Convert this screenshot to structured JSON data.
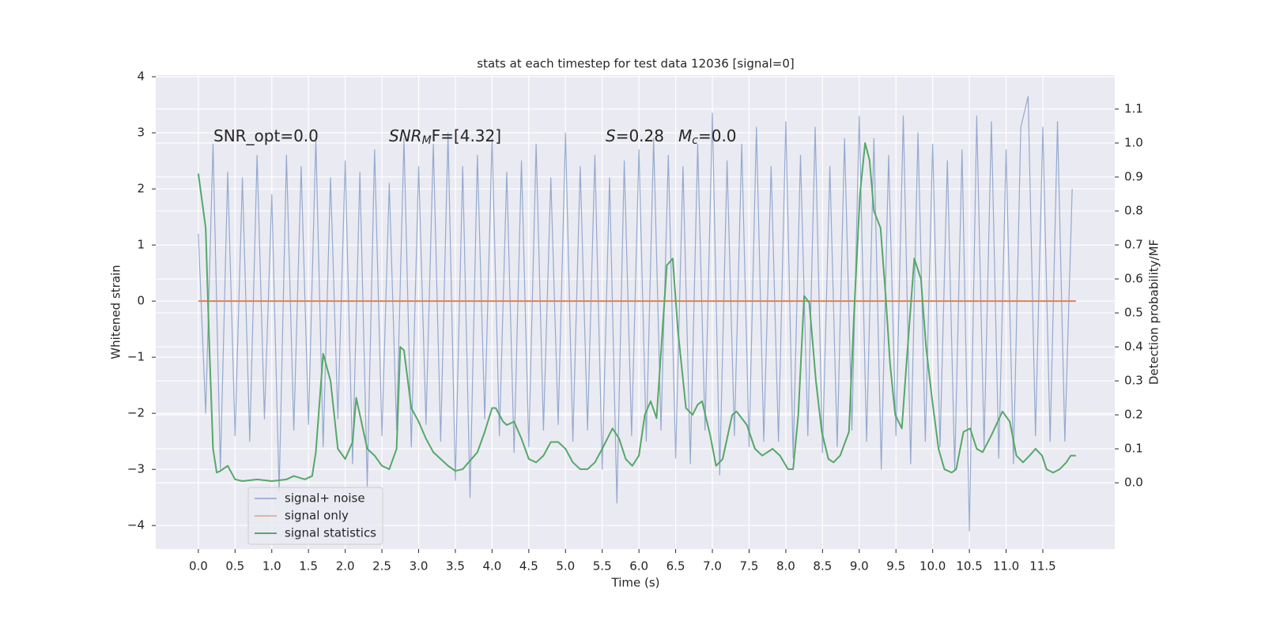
{
  "chart_data": {
    "type": "line",
    "title": "stats at each timestep for test data 12036 [signal=0]",
    "xlabel": "Time (s)",
    "ylabel": "Whitened strain",
    "y2label": "Detection probability/MF",
    "xlim": [
      -0.58,
      12.48
    ],
    "ylim": [
      -4.42,
      4.03
    ],
    "y2lim": [
      -0.195,
      1.2
    ],
    "xticks": [
      {
        "value": 0,
        "label": "0.0"
      },
      0.5,
      {
        "value": 1,
        "label": "1.0"
      },
      1.5,
      {
        "value": 2,
        "label": "2.0"
      },
      2.5,
      {
        "value": 3,
        "label": "3.0"
      },
      3.5,
      {
        "value": 4,
        "label": "4.0"
      },
      4.5,
      {
        "value": 5,
        "label": "5.0"
      },
      5.5,
      {
        "value": 6,
        "label": "6.0"
      },
      6.5,
      {
        "value": 7,
        "label": "7.0"
      },
      7.5,
      {
        "value": 8,
        "label": "8.0"
      },
      8.5,
      {
        "value": 9,
        "label": "9.0"
      },
      9.5,
      {
        "value": 10,
        "label": "10.0"
      },
      10.5,
      {
        "value": 11,
        "label": "11.0"
      },
      11.5
    ],
    "yticks": [
      {
        "value": -4,
        "label": "−4"
      },
      {
        "value": -3,
        "label": "−3"
      },
      {
        "value": -2,
        "label": "−2"
      },
      {
        "value": -1,
        "label": "−1"
      },
      0,
      1,
      2,
      3,
      4
    ],
    "y2ticks": [
      {
        "value": 0,
        "label": "0.0"
      },
      0.1,
      0.2,
      0.3,
      0.4,
      0.5,
      0.6,
      0.7,
      0.8,
      0.9,
      {
        "value": 1,
        "label": "1.0"
      },
      1.1
    ],
    "grid": true,
    "legend": "lower left",
    "annotations": [
      {
        "text": "SNR_opt=0.0"
      },
      {
        "base": "SNR",
        "sub": "M",
        "tail": "F=[4.32]"
      },
      {
        "base": "S",
        "tail": "=0.28"
      },
      {
        "base": "M",
        "sub": "c",
        "tail": "=0.0"
      }
    ],
    "series": [
      {
        "name": "signal+ noise",
        "color": "#4c72b0",
        "x": [
          0.0,
          0.1,
          0.2,
          0.3,
          0.4,
          0.5,
          0.6,
          0.7,
          0.8,
          0.9,
          1.0,
          1.1,
          1.2,
          1.3,
          1.4,
          1.5,
          1.6,
          1.7,
          1.8,
          1.9,
          2.0,
          2.1,
          2.2,
          2.3,
          2.4,
          2.5,
          2.6,
          2.7,
          2.8,
          2.9,
          3.0,
          3.1,
          3.2,
          3.3,
          3.4,
          3.5,
          3.6,
          3.7,
          3.8,
          3.9,
          4.0,
          4.1,
          4.2,
          4.3,
          4.4,
          4.5,
          4.6,
          4.7,
          4.8,
          4.9,
          5.0,
          5.1,
          5.2,
          5.3,
          5.4,
          5.5,
          5.6,
          5.7,
          5.8,
          5.9,
          6.0,
          6.1,
          6.2,
          6.3,
          6.4,
          6.5,
          6.6,
          6.7,
          6.8,
          6.9,
          7.0,
          7.1,
          7.2,
          7.3,
          7.4,
          7.5,
          7.6,
          7.7,
          7.8,
          7.9,
          8.0,
          8.1,
          8.2,
          8.3,
          8.4,
          8.5,
          8.6,
          8.7,
          8.8,
          8.9,
          9.0,
          9.1,
          9.2,
          9.3,
          9.4,
          9.5,
          9.6,
          9.7,
          9.8,
          9.9,
          10.0,
          10.1,
          10.2,
          10.3,
          10.4,
          10.5,
          10.6,
          10.7,
          10.8,
          10.9,
          11.0,
          11.1,
          11.2,
          11.3,
          11.4,
          11.5,
          11.6,
          11.7,
          11.8,
          11.9
        ],
        "values": [
          1.2,
          -2.0,
          2.8,
          -3.0,
          2.3,
          -2.4,
          2.2,
          -2.5,
          2.6,
          -2.1,
          1.9,
          -3.4,
          2.6,
          -2.3,
          2.4,
          -2.2,
          2.9,
          -2.6,
          2.2,
          -2.1,
          2.5,
          -2.9,
          2.3,
          -3.3,
          2.7,
          -2.4,
          2.1,
          -2.3,
          2.9,
          -2.6,
          2.4,
          -2.2,
          2.8,
          -2.5,
          3.0,
          -3.2,
          2.4,
          -3.5,
          2.6,
          -2.1,
          2.9,
          -2.4,
          2.3,
          -2.7,
          2.5,
          -2.6,
          2.8,
          -2.3,
          2.2,
          -2.2,
          3.0,
          -2.5,
          2.4,
          -2.3,
          2.6,
          -3.0,
          2.2,
          -3.6,
          2.5,
          -2.4,
          2.7,
          -2.5,
          2.9,
          -2.3,
          2.6,
          -2.8,
          2.4,
          -2.9,
          2.8,
          -2.3,
          3.35,
          -3.1,
          2.5,
          -2.4,
          2.8,
          -2.6,
          3.1,
          -2.5,
          2.4,
          -2.5,
          3.2,
          -2.8,
          2.6,
          -2.4,
          3.1,
          -2.7,
          2.4,
          -2.6,
          2.9,
          -2.3,
          3.3,
          -2.5,
          2.9,
          -3.0,
          2.6,
          -2.4,
          3.3,
          -2.9,
          3.0,
          -2.5,
          2.8,
          -2.6,
          2.5,
          -3.0,
          2.7,
          -4.1,
          3.3,
          -2.6,
          3.2,
          -2.8,
          2.7,
          -2.9,
          3.1,
          3.65,
          -2.4,
          3.1,
          -2.5,
          3.2,
          -2.5,
          2.0
        ]
      },
      {
        "name": "signal only",
        "color": "#dd8452",
        "x": [
          0.0,
          11.95
        ],
        "values": [
          0,
          0
        ]
      },
      {
        "name": "signal statistics",
        "color": "#55a868",
        "axis": "y2",
        "x": [
          0.0,
          0.1,
          0.15,
          0.2,
          0.25,
          0.3,
          0.4,
          0.5,
          0.6,
          0.8,
          1.0,
          1.2,
          1.3,
          1.45,
          1.55,
          1.6,
          1.7,
          1.8,
          1.9,
          2.0,
          2.1,
          2.15,
          2.2,
          2.3,
          2.4,
          2.5,
          2.6,
          2.7,
          2.75,
          2.8,
          2.9,
          3.0,
          3.1,
          3.2,
          3.4,
          3.5,
          3.6,
          3.8,
          3.9,
          4.0,
          4.05,
          4.15,
          4.2,
          4.3,
          4.4,
          4.5,
          4.6,
          4.7,
          4.8,
          4.9,
          5.0,
          5.1,
          5.2,
          5.3,
          5.4,
          5.5,
          5.64,
          5.73,
          5.82,
          5.91,
          6.0,
          6.08,
          6.16,
          6.24,
          6.38,
          6.46,
          6.53,
          6.64,
          6.73,
          6.8,
          6.86,
          6.97,
          7.05,
          7.14,
          7.27,
          7.33,
          7.47,
          7.58,
          7.68,
          7.82,
          7.92,
          8.03,
          8.1,
          8.17,
          8.25,
          8.32,
          8.41,
          8.49,
          8.58,
          8.65,
          8.74,
          8.86,
          8.93,
          9.01,
          9.08,
          9.14,
          9.2,
          9.29,
          9.36,
          9.42,
          9.49,
          9.58,
          9.66,
          9.75,
          9.84,
          9.91,
          9.99,
          10.08,
          10.16,
          10.26,
          10.32,
          10.42,
          10.51,
          10.6,
          10.68,
          10.8,
          10.95,
          11.05,
          11.14,
          11.23,
          11.32,
          11.4,
          11.49,
          11.55,
          11.64,
          11.73,
          11.82,
          11.88,
          11.95
        ],
        "values": [
          0.91,
          0.75,
          0.4,
          0.1,
          0.03,
          0.035,
          0.05,
          0.01,
          0.005,
          0.01,
          0.005,
          0.01,
          0.02,
          0.01,
          0.02,
          0.09,
          0.38,
          0.3,
          0.1,
          0.07,
          0.12,
          0.25,
          0.2,
          0.1,
          0.08,
          0.05,
          0.04,
          0.1,
          0.4,
          0.39,
          0.22,
          0.18,
          0.13,
          0.09,
          0.05,
          0.035,
          0.04,
          0.09,
          0.15,
          0.22,
          0.22,
          0.18,
          0.17,
          0.18,
          0.13,
          0.07,
          0.06,
          0.08,
          0.12,
          0.12,
          0.1,
          0.06,
          0.04,
          0.04,
          0.06,
          0.1,
          0.16,
          0.13,
          0.07,
          0.05,
          0.08,
          0.2,
          0.24,
          0.19,
          0.64,
          0.66,
          0.45,
          0.22,
          0.2,
          0.23,
          0.24,
          0.14,
          0.05,
          0.07,
          0.2,
          0.21,
          0.17,
          0.1,
          0.08,
          0.1,
          0.08,
          0.04,
          0.04,
          0.2,
          0.55,
          0.53,
          0.3,
          0.15,
          0.07,
          0.06,
          0.08,
          0.15,
          0.5,
          0.85,
          1.0,
          0.95,
          0.8,
          0.75,
          0.55,
          0.35,
          0.2,
          0.16,
          0.4,
          0.66,
          0.6,
          0.4,
          0.25,
          0.1,
          0.04,
          0.03,
          0.04,
          0.15,
          0.16,
          0.1,
          0.09,
          0.14,
          0.21,
          0.18,
          0.08,
          0.06,
          0.08,
          0.1,
          0.08,
          0.04,
          0.03,
          0.04,
          0.06,
          0.08,
          0.08
        ]
      }
    ]
  }
}
